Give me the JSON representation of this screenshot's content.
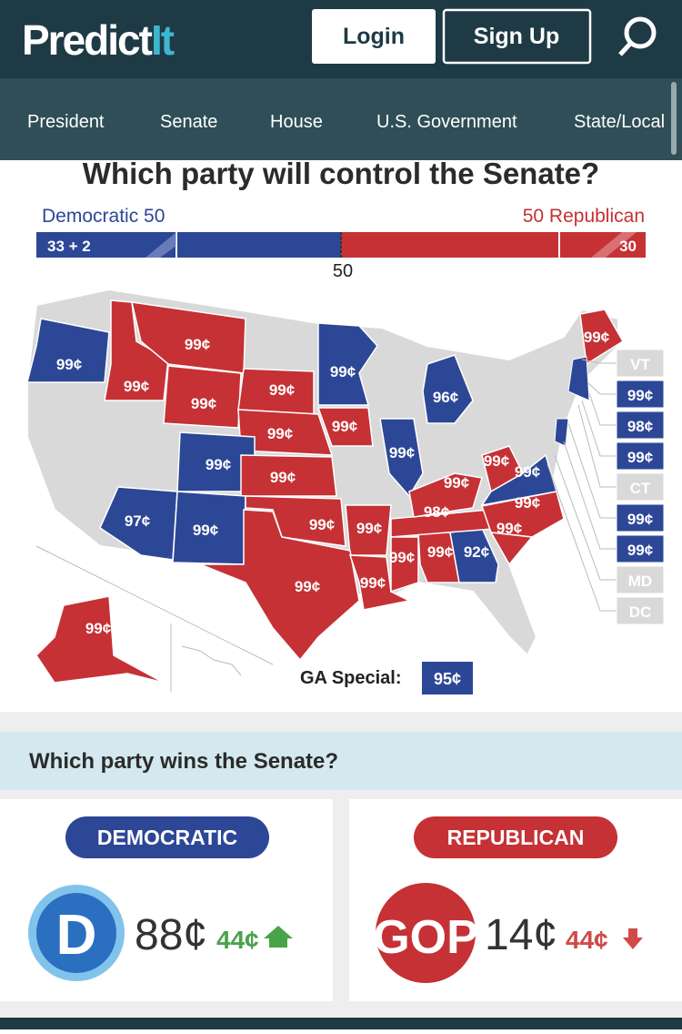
{
  "header": {
    "logo_main": "Predict",
    "logo_accent": "It",
    "login": "Login",
    "signup": "Sign Up"
  },
  "nav": [
    "President",
    "Senate",
    "House",
    "U.S. Government",
    "State/Local"
  ],
  "map": {
    "title": "Which party will control the Senate?",
    "dem_label": "Democratic 50",
    "rep_label": "50 Republican",
    "dem_bar": "33 + 2",
    "rep_bar": "30",
    "midpoint": "50",
    "states": [
      "99¢",
      "99¢",
      "99¢",
      "99¢",
      "99¢",
      "99¢",
      "99¢",
      "99¢",
      "96¢",
      "99¢",
      "99¢",
      "99¢",
      "97¢",
      "99¢",
      "99¢",
      "99¢",
      "99¢",
      "99¢",
      "99¢",
      "99¢",
      "92¢",
      "98¢",
      "99¢",
      "99¢",
      "99¢",
      "99¢",
      "99¢",
      "99¢",
      "99¢"
    ],
    "side_boxes": [
      "VT",
      "99¢",
      "98¢",
      "99¢",
      "CT",
      "99¢",
      "99¢",
      "MD",
      "DC"
    ],
    "ga_special_label": "GA Special:",
    "ga_special_price": "95¢"
  },
  "market": {
    "title": "Which party wins the Senate?",
    "dem": {
      "name": "DEMOCRATIC",
      "logo": "D",
      "price": "88¢",
      "change": "44¢"
    },
    "rep": {
      "name": "REPUBLICAN",
      "logo": "GOP",
      "price": "14¢",
      "change": "44¢"
    }
  }
}
